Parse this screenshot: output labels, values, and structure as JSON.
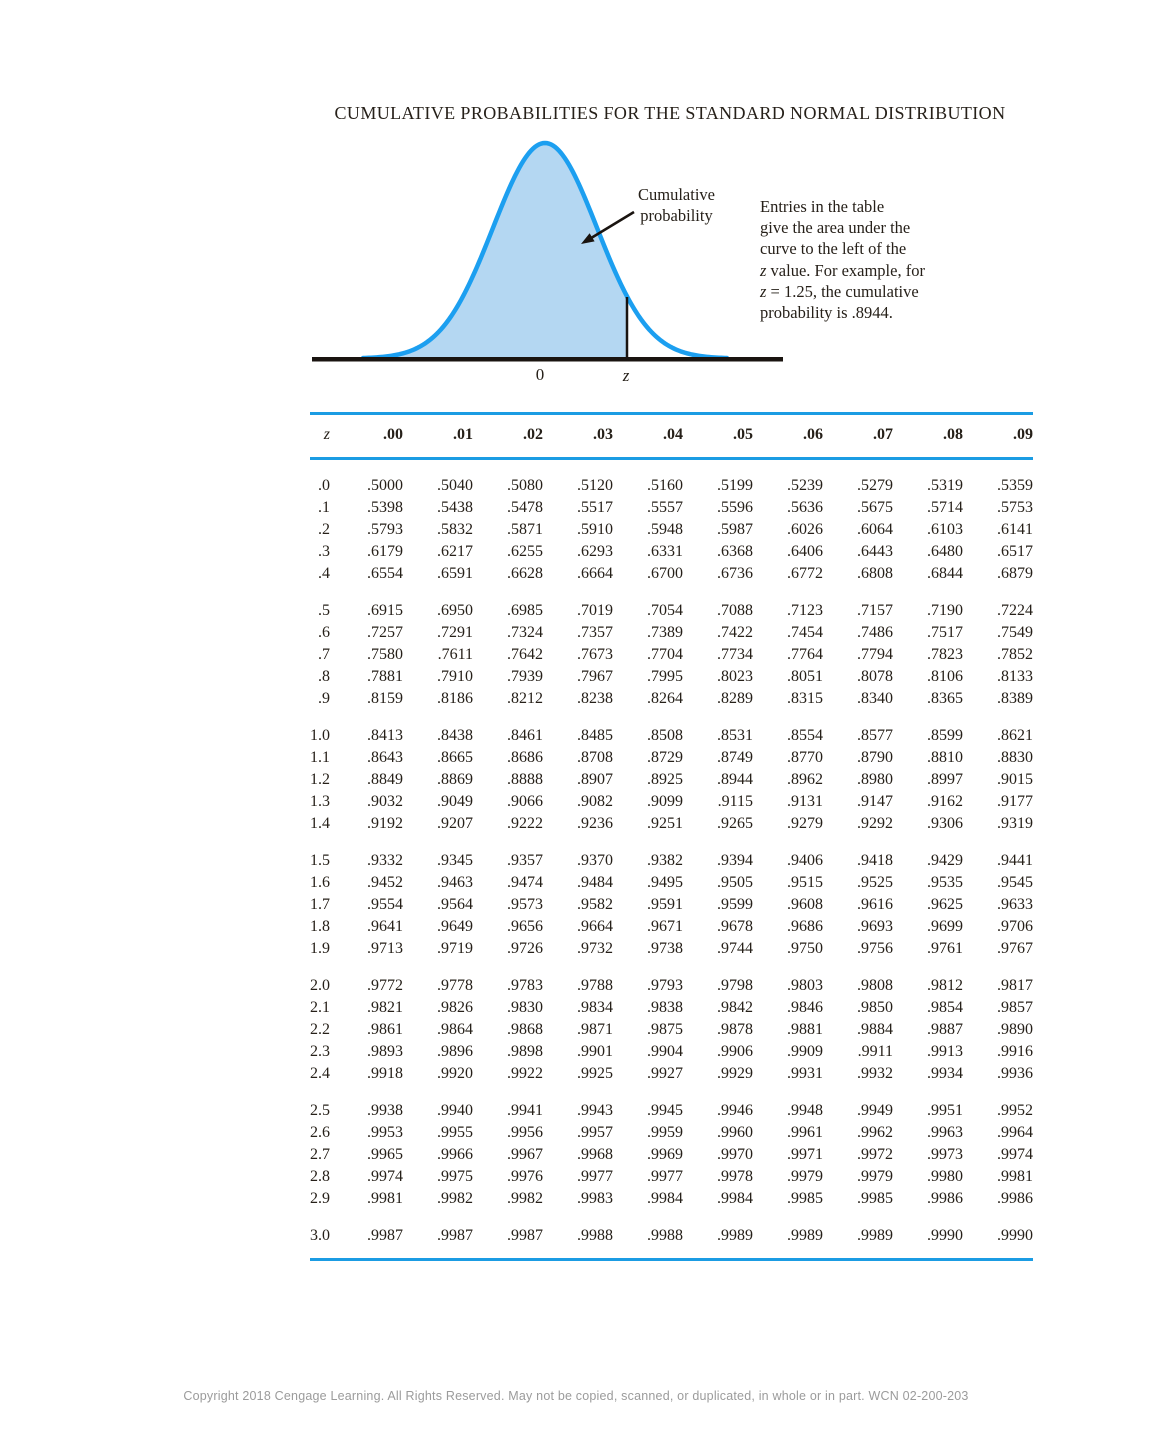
{
  "page": {
    "title": "CUMULATIVE PROBABILITIES FOR THE STANDARD NORMAL DISTRIBUTION",
    "copyright": "Copyright 2018 Cengage Learning. All Rights Reserved. May not be copied, scanned, or duplicated, in whole or in part.  WCN 02-200-203"
  },
  "figure": {
    "callout_line1": "Cumulative",
    "callout_line2": "probability",
    "axis_label_zero": "0",
    "axis_label_z": "z",
    "note": {
      "line1": "Entries in the table",
      "line2": "give the area under the",
      "line3": "curve to the left of the",
      "line4_z": "z",
      "line4_rest": " value. For example, for",
      "line5_z": "z",
      "line5_rest": " = 1.25, the cumulative",
      "line6": "probability is .8944."
    },
    "colors": {
      "curve_stroke": "#1c9ff0",
      "curve_fill": "#b4d7f2",
      "rule_blue": "#1b9ce3",
      "ink": "#262019",
      "copyright_gray": "#9b9b9b"
    }
  },
  "table": {
    "header": [
      "z",
      ".00",
      ".01",
      ".02",
      ".03",
      ".04",
      ".05",
      ".06",
      ".07",
      ".08",
      ".09"
    ],
    "blocks": [
      {
        "rows": [
          {
            "z": ".0",
            "v": [
              ".5000",
              ".5040",
              ".5080",
              ".5120",
              ".5160",
              ".5199",
              ".5239",
              ".5279",
              ".5319",
              ".5359"
            ]
          },
          {
            "z": ".1",
            "v": [
              ".5398",
              ".5438",
              ".5478",
              ".5517",
              ".5557",
              ".5596",
              ".5636",
              ".5675",
              ".5714",
              ".5753"
            ]
          },
          {
            "z": ".2",
            "v": [
              ".5793",
              ".5832",
              ".5871",
              ".5910",
              ".5948",
              ".5987",
              ".6026",
              ".6064",
              ".6103",
              ".6141"
            ]
          },
          {
            "z": ".3",
            "v": [
              ".6179",
              ".6217",
              ".6255",
              ".6293",
              ".6331",
              ".6368",
              ".6406",
              ".6443",
              ".6480",
              ".6517"
            ]
          },
          {
            "z": ".4",
            "v": [
              ".6554",
              ".6591",
              ".6628",
              ".6664",
              ".6700",
              ".6736",
              ".6772",
              ".6808",
              ".6844",
              ".6879"
            ]
          }
        ]
      },
      {
        "rows": [
          {
            "z": ".5",
            "v": [
              ".6915",
              ".6950",
              ".6985",
              ".7019",
              ".7054",
              ".7088",
              ".7123",
              ".7157",
              ".7190",
              ".7224"
            ]
          },
          {
            "z": ".6",
            "v": [
              ".7257",
              ".7291",
              ".7324",
              ".7357",
              ".7389",
              ".7422",
              ".7454",
              ".7486",
              ".7517",
              ".7549"
            ]
          },
          {
            "z": ".7",
            "v": [
              ".7580",
              ".7611",
              ".7642",
              ".7673",
              ".7704",
              ".7734",
              ".7764",
              ".7794",
              ".7823",
              ".7852"
            ]
          },
          {
            "z": ".8",
            "v": [
              ".7881",
              ".7910",
              ".7939",
              ".7967",
              ".7995",
              ".8023",
              ".8051",
              ".8078",
              ".8106",
              ".8133"
            ]
          },
          {
            "z": ".9",
            "v": [
              ".8159",
              ".8186",
              ".8212",
              ".8238",
              ".8264",
              ".8289",
              ".8315",
              ".8340",
              ".8365",
              ".8389"
            ]
          }
        ]
      },
      {
        "rows": [
          {
            "z": "1.0",
            "v": [
              ".8413",
              ".8438",
              ".8461",
              ".8485",
              ".8508",
              ".8531",
              ".8554",
              ".8577",
              ".8599",
              ".8621"
            ]
          },
          {
            "z": "1.1",
            "v": [
              ".8643",
              ".8665",
              ".8686",
              ".8708",
              ".8729",
              ".8749",
              ".8770",
              ".8790",
              ".8810",
              ".8830"
            ]
          },
          {
            "z": "1.2",
            "v": [
              ".8849",
              ".8869",
              ".8888",
              ".8907",
              ".8925",
              ".8944",
              ".8962",
              ".8980",
              ".8997",
              ".9015"
            ]
          },
          {
            "z": "1.3",
            "v": [
              ".9032",
              ".9049",
              ".9066",
              ".9082",
              ".9099",
              ".9115",
              ".9131",
              ".9147",
              ".9162",
              ".9177"
            ]
          },
          {
            "z": "1.4",
            "v": [
              ".9192",
              ".9207",
              ".9222",
              ".9236",
              ".9251",
              ".9265",
              ".9279",
              ".9292",
              ".9306",
              ".9319"
            ]
          }
        ]
      },
      {
        "rows": [
          {
            "z": "1.5",
            "v": [
              ".9332",
              ".9345",
              ".9357",
              ".9370",
              ".9382",
              ".9394",
              ".9406",
              ".9418",
              ".9429",
              ".9441"
            ]
          },
          {
            "z": "1.6",
            "v": [
              ".9452",
              ".9463",
              ".9474",
              ".9484",
              ".9495",
              ".9505",
              ".9515",
              ".9525",
              ".9535",
              ".9545"
            ]
          },
          {
            "z": "1.7",
            "v": [
              ".9554",
              ".9564",
              ".9573",
              ".9582",
              ".9591",
              ".9599",
              ".9608",
              ".9616",
              ".9625",
              ".9633"
            ]
          },
          {
            "z": "1.8",
            "v": [
              ".9641",
              ".9649",
              ".9656",
              ".9664",
              ".9671",
              ".9678",
              ".9686",
              ".9693",
              ".9699",
              ".9706"
            ]
          },
          {
            "z": "1.9",
            "v": [
              ".9713",
              ".9719",
              ".9726",
              ".9732",
              ".9738",
              ".9744",
              ".9750",
              ".9756",
              ".9761",
              ".9767"
            ]
          }
        ]
      },
      {
        "rows": [
          {
            "z": "2.0",
            "v": [
              ".9772",
              ".9778",
              ".9783",
              ".9788",
              ".9793",
              ".9798",
              ".9803",
              ".9808",
              ".9812",
              ".9817"
            ]
          },
          {
            "z": "2.1",
            "v": [
              ".9821",
              ".9826",
              ".9830",
              ".9834",
              ".9838",
              ".9842",
              ".9846",
              ".9850",
              ".9854",
              ".9857"
            ]
          },
          {
            "z": "2.2",
            "v": [
              ".9861",
              ".9864",
              ".9868",
              ".9871",
              ".9875",
              ".9878",
              ".9881",
              ".9884",
              ".9887",
              ".9890"
            ]
          },
          {
            "z": "2.3",
            "v": [
              ".9893",
              ".9896",
              ".9898",
              ".9901",
              ".9904",
              ".9906",
              ".9909",
              ".9911",
              ".9913",
              ".9916"
            ]
          },
          {
            "z": "2.4",
            "v": [
              ".9918",
              ".9920",
              ".9922",
              ".9925",
              ".9927",
              ".9929",
              ".9931",
              ".9932",
              ".9934",
              ".9936"
            ]
          }
        ]
      },
      {
        "rows": [
          {
            "z": "2.5",
            "v": [
              ".9938",
              ".9940",
              ".9941",
              ".9943",
              ".9945",
              ".9946",
              ".9948",
              ".9949",
              ".9951",
              ".9952"
            ]
          },
          {
            "z": "2.6",
            "v": [
              ".9953",
              ".9955",
              ".9956",
              ".9957",
              ".9959",
              ".9960",
              ".9961",
              ".9962",
              ".9963",
              ".9964"
            ]
          },
          {
            "z": "2.7",
            "v": [
              ".9965",
              ".9966",
              ".9967",
              ".9968",
              ".9969",
              ".9970",
              ".9971",
              ".9972",
              ".9973",
              ".9974"
            ]
          },
          {
            "z": "2.8",
            "v": [
              ".9974",
              ".9975",
              ".9976",
              ".9977",
              ".9977",
              ".9978",
              ".9979",
              ".9979",
              ".9980",
              ".9981"
            ]
          },
          {
            "z": "2.9",
            "v": [
              ".9981",
              ".9982",
              ".9982",
              ".9983",
              ".9984",
              ".9984",
              ".9985",
              ".9985",
              ".9986",
              ".9986"
            ]
          }
        ]
      },
      {
        "rows": [
          {
            "z": "3.0",
            "v": [
              ".9987",
              ".9987",
              ".9987",
              ".9988",
              ".9988",
              ".9989",
              ".9989",
              ".9989",
              ".9990",
              ".9990"
            ]
          }
        ]
      }
    ]
  }
}
